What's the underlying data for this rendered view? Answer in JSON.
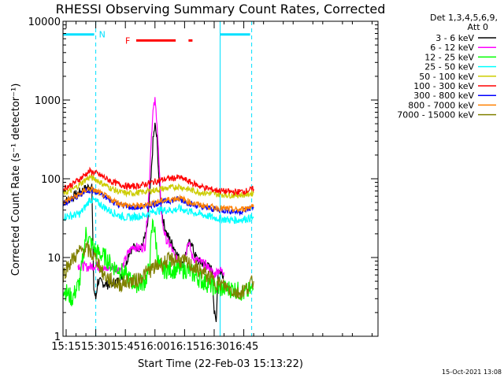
{
  "chart_data": {
    "type": "line",
    "title": "RHESSI Observing Summary Count Rates, Corrected",
    "xlabel": "Start Time (22-Feb-03 15:13:22)",
    "ylabel": "Corrected Count Rate (s⁻¹ detector⁻¹)",
    "yscale": "log",
    "ylim": [
      1,
      10000
    ],
    "xlim_minutes": [
      13.4,
      173
    ],
    "x_ticks": [
      {
        "label": "15:15",
        "minute": 15
      },
      {
        "label": "15:30",
        "minute": 30
      },
      {
        "label": "15:45",
        "minute": 45
      },
      {
        "label": "16:00",
        "minute": 60
      },
      {
        "label": "16:15",
        "minute": 75
      },
      {
        "label": "16:30",
        "minute": 90
      },
      {
        "label": "16:45",
        "minute": 105
      }
    ],
    "y_ticks": [
      {
        "label": "1",
        "value": 1
      },
      {
        "label": "10",
        "value": 10
      },
      {
        "label": "100",
        "value": 100
      },
      {
        "label": "1000",
        "value": 1000
      },
      {
        "label": "10000",
        "value": 10000
      }
    ],
    "legend_header": [
      "Det 1,3,4,5,6,9,",
      "Att 0"
    ],
    "legend_position": "right",
    "series": [
      {
        "name": "3 - 6 keV",
        "color": "#000000",
        "points": [
          [
            13.5,
            50
          ],
          [
            18,
            58
          ],
          [
            22,
            68
          ],
          [
            26,
            78
          ],
          [
            28,
            82
          ],
          [
            29,
            4
          ],
          [
            30,
            3
          ],
          [
            31,
            5
          ],
          [
            36,
            4.5
          ],
          [
            41,
            5
          ],
          [
            44,
            6
          ],
          [
            47,
            12
          ],
          [
            50,
            14
          ],
          [
            53,
            13
          ],
          [
            56,
            22
          ],
          [
            58,
            100
          ],
          [
            59,
            300
          ],
          [
            60,
            480
          ],
          [
            61,
            320
          ],
          [
            62,
            100
          ],
          [
            63,
            50
          ],
          [
            64,
            30
          ],
          [
            66,
            20
          ],
          [
            68,
            16
          ],
          [
            70,
            13
          ],
          [
            72,
            10
          ],
          [
            74,
            8
          ],
          [
            76,
            12
          ],
          [
            78,
            17
          ],
          [
            80,
            11
          ],
          [
            82,
            9
          ],
          [
            86,
            8
          ],
          [
            89,
            7
          ],
          [
            90,
            2
          ],
          [
            91,
            1.5
          ],
          [
            92,
            7
          ],
          [
            95,
            6
          ]
        ]
      },
      {
        "name": "6 - 12 keV",
        "color": "#ff00ff",
        "points": [
          [
            21,
            8
          ],
          [
            26,
            7.5
          ],
          [
            30,
            8
          ],
          [
            34,
            7
          ],
          [
            38,
            7.5
          ],
          [
            42,
            7
          ],
          [
            44,
            8
          ],
          [
            46,
            11
          ],
          [
            49,
            14
          ],
          [
            52,
            13
          ],
          [
            55,
            14
          ],
          [
            57,
            70
          ],
          [
            58,
            300
          ],
          [
            59,
            700
          ],
          [
            60,
            980
          ],
          [
            61,
            550
          ],
          [
            62,
            160
          ],
          [
            63,
            45
          ],
          [
            64,
            25
          ],
          [
            66,
            16
          ],
          [
            68,
            14
          ],
          [
            70,
            10
          ],
          [
            72,
            9
          ],
          [
            74,
            8
          ],
          [
            76,
            13
          ],
          [
            77,
            16
          ],
          [
            79,
            10
          ],
          [
            82,
            9
          ],
          [
            86,
            8
          ],
          [
            88,
            7
          ],
          [
            90,
            6
          ],
          [
            92,
            7
          ],
          [
            95,
            6.5
          ]
        ]
      },
      {
        "name": "12 - 25 keV",
        "color": "#00ff00",
        "points": [
          [
            13.5,
            4
          ],
          [
            18,
            3
          ],
          [
            22,
            5
          ],
          [
            25,
            20
          ],
          [
            27,
            16
          ],
          [
            30,
            12
          ],
          [
            35,
            10
          ],
          [
            38,
            8
          ],
          [
            42,
            7
          ],
          [
            45,
            6
          ],
          [
            48,
            5
          ],
          [
            52,
            4.5
          ],
          [
            55,
            5
          ],
          [
            57,
            7
          ],
          [
            58,
            16
          ],
          [
            59,
            30
          ],
          [
            60,
            20
          ],
          [
            61,
            12
          ],
          [
            62,
            8
          ],
          [
            64,
            7
          ],
          [
            68,
            7
          ],
          [
            72,
            7
          ],
          [
            76,
            7
          ],
          [
            80,
            6
          ],
          [
            84,
            5
          ],
          [
            88,
            4.5
          ],
          [
            92,
            4
          ],
          [
            96,
            4
          ],
          [
            100,
            4
          ],
          [
            105,
            3.5
          ],
          [
            110,
            4
          ]
        ]
      },
      {
        "name": "25 - 50 keV",
        "color": "#00ffff",
        "points": [
          [
            13.5,
            33
          ],
          [
            18,
            34
          ],
          [
            22,
            36
          ],
          [
            25,
            45
          ],
          [
            27,
            55
          ],
          [
            30,
            52
          ],
          [
            34,
            44
          ],
          [
            38,
            38
          ],
          [
            42,
            34
          ],
          [
            46,
            32
          ],
          [
            50,
            33
          ],
          [
            54,
            34
          ],
          [
            57,
            36
          ],
          [
            60,
            39
          ],
          [
            63,
            40
          ],
          [
            66,
            40
          ],
          [
            70,
            40
          ],
          [
            72,
            42
          ],
          [
            75,
            40
          ],
          [
            78,
            38
          ],
          [
            82,
            36
          ],
          [
            86,
            34
          ],
          [
            90,
            32
          ],
          [
            94,
            31
          ],
          [
            98,
            30
          ],
          [
            102,
            30
          ],
          [
            106,
            31
          ],
          [
            110,
            32
          ]
        ]
      },
      {
        "name": "50 - 100 keV",
        "color": "#cccc00",
        "points": [
          [
            13.5,
            65
          ],
          [
            18,
            72
          ],
          [
            22,
            85
          ],
          [
            25,
            98
          ],
          [
            27,
            105
          ],
          [
            30,
            98
          ],
          [
            34,
            85
          ],
          [
            38,
            75
          ],
          [
            42,
            68
          ],
          [
            46,
            65
          ],
          [
            50,
            66
          ],
          [
            54,
            68
          ],
          [
            57,
            70
          ],
          [
            60,
            72
          ],
          [
            63,
            74
          ],
          [
            66,
            76
          ],
          [
            70,
            78
          ],
          [
            72,
            80
          ],
          [
            75,
            76
          ],
          [
            78,
            72
          ],
          [
            82,
            68
          ],
          [
            86,
            66
          ],
          [
            90,
            64
          ],
          [
            94,
            63
          ],
          [
            98,
            62
          ],
          [
            102,
            62
          ],
          [
            106,
            63
          ],
          [
            110,
            66
          ]
        ]
      },
      {
        "name": "100 - 300 keV",
        "color": "#ff0000",
        "points": [
          [
            13.5,
            75
          ],
          [
            18,
            85
          ],
          [
            22,
            100
          ],
          [
            25,
            115
          ],
          [
            27,
            125
          ],
          [
            30,
            118
          ],
          [
            34,
            105
          ],
          [
            38,
            92
          ],
          [
            42,
            85
          ],
          [
            46,
            80
          ],
          [
            50,
            80
          ],
          [
            54,
            84
          ],
          [
            57,
            88
          ],
          [
            60,
            92
          ],
          [
            63,
            96
          ],
          [
            66,
            100
          ],
          [
            70,
            102
          ],
          [
            72,
            104
          ],
          [
            75,
            98
          ],
          [
            78,
            90
          ],
          [
            82,
            82
          ],
          [
            86,
            76
          ],
          [
            90,
            72
          ],
          [
            94,
            70
          ],
          [
            98,
            68
          ],
          [
            102,
            68
          ],
          [
            106,
            70
          ],
          [
            110,
            74
          ]
        ]
      },
      {
        "name": "300 - 800 keV",
        "color": "#0000ff",
        "points": [
          [
            13.5,
            48
          ],
          [
            18,
            55
          ],
          [
            22,
            62
          ],
          [
            25,
            70
          ],
          [
            27,
            72
          ],
          [
            30,
            68
          ],
          [
            34,
            60
          ],
          [
            38,
            52
          ],
          [
            42,
            47
          ],
          [
            46,
            44
          ],
          [
            50,
            43
          ],
          [
            54,
            44
          ],
          [
            57,
            46
          ],
          [
            60,
            48
          ],
          [
            63,
            50
          ],
          [
            66,
            52
          ],
          [
            70,
            54
          ],
          [
            72,
            55
          ],
          [
            75,
            52
          ],
          [
            78,
            48
          ],
          [
            82,
            45
          ],
          [
            86,
            43
          ],
          [
            90,
            41
          ],
          [
            94,
            40
          ],
          [
            98,
            39
          ],
          [
            102,
            38
          ],
          [
            106,
            40
          ],
          [
            110,
            44
          ]
        ]
      },
      {
        "name": "800 - 7000 keV",
        "color": "#ff8000",
        "points": [
          [
            13.5,
            50
          ],
          [
            18,
            57
          ],
          [
            22,
            64
          ],
          [
            25,
            72
          ],
          [
            27,
            75
          ],
          [
            30,
            70
          ],
          [
            34,
            62
          ],
          [
            38,
            54
          ],
          [
            42,
            49
          ],
          [
            46,
            46
          ],
          [
            50,
            45
          ],
          [
            54,
            46
          ],
          [
            57,
            48
          ],
          [
            60,
            50
          ],
          [
            63,
            52
          ],
          [
            66,
            54
          ],
          [
            70,
            56
          ],
          [
            72,
            57
          ],
          [
            75,
            54
          ],
          [
            78,
            50
          ],
          [
            82,
            47
          ],
          [
            86,
            45
          ],
          [
            90,
            43
          ],
          [
            94,
            42
          ],
          [
            98,
            41
          ],
          [
            102,
            40
          ],
          [
            106,
            42
          ],
          [
            110,
            46
          ]
        ]
      },
      {
        "name": "7000 - 15000 keV",
        "color": "#808000",
        "points": [
          [
            13.5,
            6
          ],
          [
            16,
            8
          ],
          [
            19,
            10
          ],
          [
            22,
            12
          ],
          [
            25,
            13
          ],
          [
            28,
            11
          ],
          [
            31,
            9
          ],
          [
            34,
            6
          ],
          [
            38,
            5
          ],
          [
            42,
            4.5
          ],
          [
            46,
            5
          ],
          [
            50,
            5
          ],
          [
            54,
            6
          ],
          [
            58,
            7
          ],
          [
            62,
            8
          ],
          [
            66,
            9
          ],
          [
            70,
            9.5
          ],
          [
            74,
            9
          ],
          [
            78,
            8
          ],
          [
            82,
            7
          ],
          [
            86,
            6
          ],
          [
            90,
            5
          ],
          [
            94,
            4.5
          ],
          [
            98,
            4
          ],
          [
            102,
            3.5
          ],
          [
            106,
            4
          ],
          [
            110,
            5
          ]
        ]
      }
    ],
    "annotations": {
      "night_label": "N",
      "flare_label": "F",
      "night_intervals_minutes": [
        [
          13.4,
          30
        ],
        [
          93,
          109
        ]
      ],
      "night_bar_value": 6800,
      "flare_intervals_minutes": [
        [
          50.5,
          70.5
        ],
        [
          77,
          79
        ]
      ],
      "flare_bar_value": 5700,
      "boundary_lines_minutes": [
        {
          "minute": 30,
          "style": "dashed"
        },
        {
          "minute": 93,
          "style": "solid"
        },
        {
          "minute": 109,
          "style": "dashed"
        }
      ],
      "colors": {
        "night": "#00e0ff",
        "flare": "#ff0000"
      }
    }
  },
  "footer": {
    "timestamp": "15-Oct-2021 13:08"
  }
}
